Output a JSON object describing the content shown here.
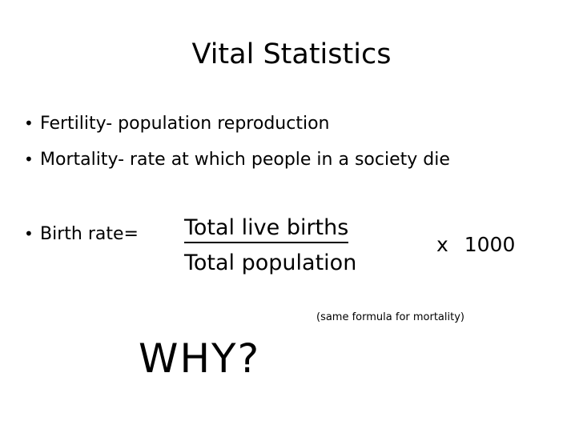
{
  "slide": {
    "title": "Vital Statistics",
    "bullets": [
      {
        "bullet": "•",
        "text": "Fertility- population reproduction"
      },
      {
        "bullet": "•",
        "text": "Mortality- rate at which people in a society die"
      },
      {
        "bullet": "•",
        "text": "Birth rate="
      }
    ],
    "formula": {
      "numerator": "Total live births",
      "denominator": "Total population",
      "multiplier": "x  1000"
    },
    "note": "(same formula for mortality)",
    "question": "WHY?"
  }
}
